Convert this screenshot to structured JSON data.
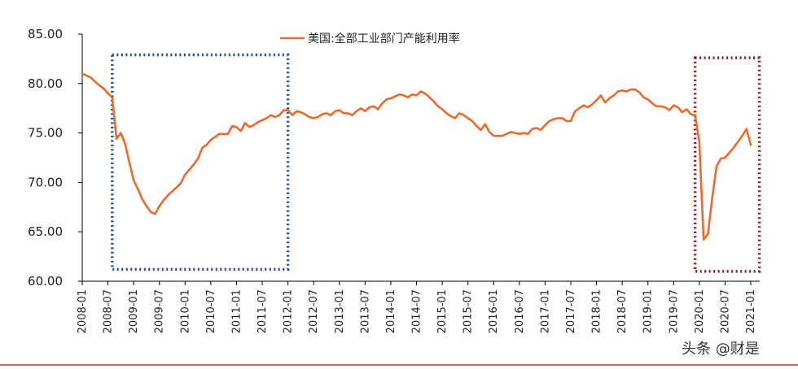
{
  "chart_data": {
    "type": "line",
    "title": "",
    "xlabel": "",
    "ylabel": "",
    "ylim": [
      60,
      85
    ],
    "y_ticks": [
      "60.00",
      "65.00",
      "70.00",
      "75.00",
      "80.00",
      "85.00"
    ],
    "x_ticks": [
      "2008-01",
      "2008-07",
      "2009-01",
      "2009-07",
      "2010-01",
      "2010-07",
      "2011-01",
      "2011-07",
      "2012-01",
      "2012-07",
      "2013-01",
      "2013-07",
      "2014-01",
      "2014-07",
      "2015-01",
      "2015-07",
      "2016-01",
      "2016-07",
      "2017-01",
      "2017-07",
      "2018-01",
      "2018-07",
      "2019-01",
      "2019-07",
      "2020-01",
      "2020-07",
      "2021-01"
    ],
    "grid": false,
    "legend_position": "top-center",
    "series": [
      {
        "name": "美国:全部工业部门产能利用率",
        "color": "#ee6a2c",
        "x_start": "2008-01",
        "frequency": "monthly",
        "values": [
          81.0,
          80.8,
          80.6,
          80.2,
          79.8,
          79.5,
          79.0,
          78.6,
          74.4,
          75.0,
          73.9,
          72.0,
          70.2,
          69.3,
          68.3,
          67.6,
          67.0,
          66.8,
          67.6,
          68.2,
          68.7,
          69.1,
          69.5,
          69.9,
          70.8,
          71.3,
          71.8,
          72.4,
          73.5,
          73.8,
          74.3,
          74.6,
          74.9,
          74.9,
          74.9,
          75.7,
          75.6,
          75.2,
          76.0,
          75.6,
          75.8,
          76.1,
          76.3,
          76.5,
          76.8,
          76.6,
          76.8,
          77.3,
          77.3,
          76.8,
          77.2,
          77.1,
          76.9,
          76.6,
          76.5,
          76.6,
          76.9,
          77.0,
          76.8,
          77.2,
          77.3,
          77.0,
          77.0,
          76.8,
          77.2,
          77.5,
          77.2,
          77.6,
          77.7,
          77.4,
          78.0,
          78.4,
          78.5,
          78.7,
          78.9,
          78.8,
          78.6,
          78.9,
          78.8,
          79.2,
          79.0,
          78.6,
          78.2,
          77.7,
          77.4,
          77.0,
          76.7,
          76.5,
          77.0,
          76.8,
          76.5,
          76.2,
          75.7,
          75.3,
          75.9,
          75.1,
          74.7,
          74.7,
          74.7,
          74.9,
          75.1,
          75.0,
          74.9,
          75.0,
          74.9,
          75.4,
          75.5,
          75.3,
          75.8,
          76.2,
          76.4,
          76.5,
          76.5,
          76.2,
          76.2,
          77.2,
          77.5,
          77.8,
          77.6,
          77.9,
          78.3,
          78.8,
          78.1,
          78.5,
          78.8,
          79.2,
          79.3,
          79.2,
          79.4,
          79.4,
          79.1,
          78.6,
          78.4,
          78.0,
          77.7,
          77.7,
          77.6,
          77.3,
          77.8,
          77.6,
          77.1,
          77.4,
          76.9,
          76.8,
          74.1,
          64.2,
          64.8,
          68.4,
          71.6,
          72.4,
          72.5,
          73.0,
          73.5,
          74.1,
          74.7,
          75.4,
          73.8
        ]
      }
    ],
    "annotations": [
      {
        "type": "dotted-box",
        "color": "#1f4e8c",
        "x_from": "2008-08",
        "x_to": "2012-01",
        "y_from": 61.2,
        "y_to": 82.9
      },
      {
        "type": "dotted-box",
        "color": "#8b1a1a",
        "x_from": "2019-12",
        "x_to": "2021-03",
        "y_from": 61.0,
        "y_to": 82.6
      }
    ]
  },
  "watermark": "头条 @财是"
}
